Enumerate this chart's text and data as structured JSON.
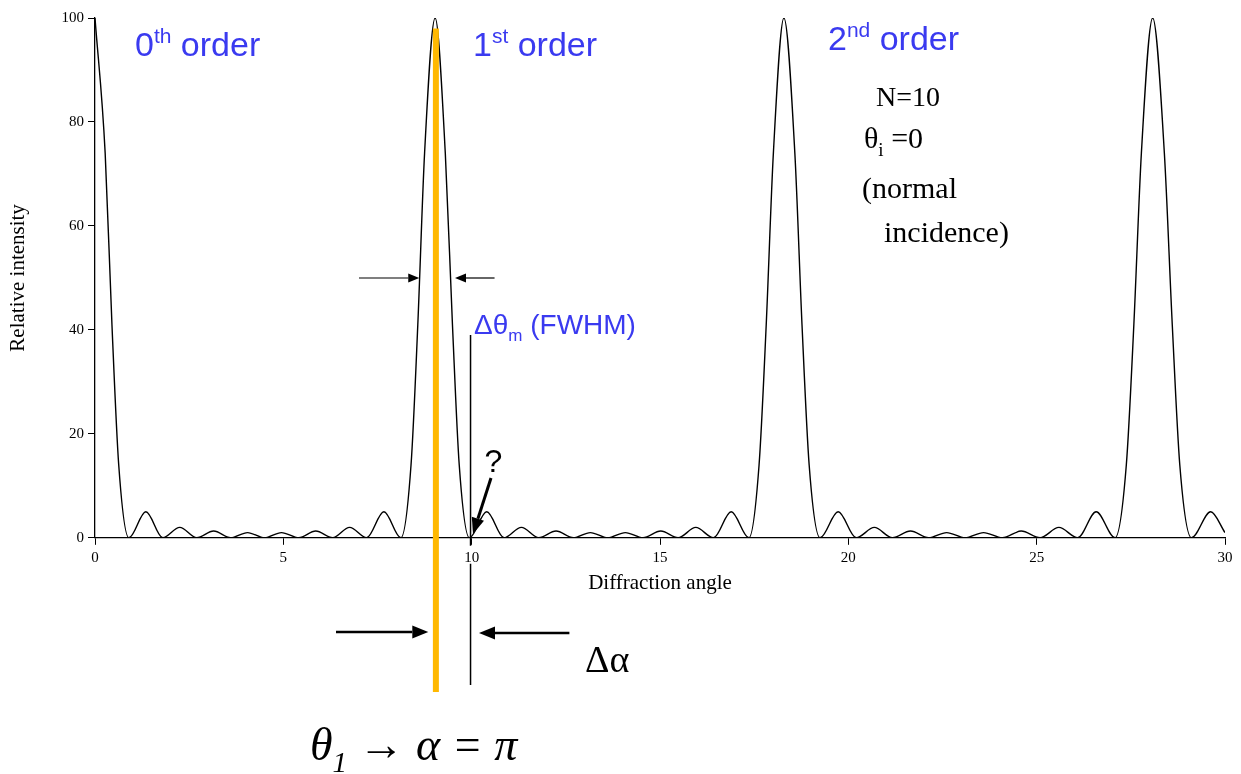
{
  "chart_data": {
    "type": "line",
    "xlabel": "Diffraction angle",
    "ylabel": "Relative intensity",
    "series": [
      {
        "color": "#000000",
        "x": [
          0,
          0.27,
          0.45,
          0.63,
          0.9,
          1.35,
          1.8,
          2.25,
          2.7,
          3.15,
          3.6,
          4.05,
          4.5,
          4.95,
          5.41,
          5.86,
          6.31,
          6.76,
          7.21,
          7.67,
          8.12,
          8.39,
          8.57,
          8.75,
          9.03,
          9.3,
          9.49,
          9.67,
          9.94,
          10.4,
          10.86,
          11.32,
          11.78,
          12.24,
          12.7,
          13.15,
          13.61,
          14.08,
          14.55,
          15.02,
          15.48,
          15.95,
          16.42,
          16.89,
          17.36,
          17.63,
          17.82,
          18.01,
          18.29,
          18.58,
          18.77,
          18.96,
          19.25,
          19.73,
          20.21,
          20.69,
          21.17,
          21.65,
          22.13,
          22.61,
          23.1,
          23.59,
          24.09,
          24.59,
          25.09,
          25.59,
          26.09,
          26.58,
          27.08,
          27.38,
          27.58,
          27.78,
          28.08,
          28.39,
          28.6,
          28.8,
          29.11,
          29.62,
          30
        ],
        "values": [
          100,
          74,
          41,
          14,
          0,
          5,
          0,
          2,
          0,
          1.3,
          0,
          1,
          0,
          1,
          0,
          1.3,
          0,
          2,
          0,
          5,
          0,
          14,
          41,
          74,
          100,
          74,
          41,
          14,
          0,
          5,
          0,
          2,
          0,
          1.3,
          0,
          1,
          0,
          1,
          0,
          1.3,
          0,
          2,
          0,
          5,
          0,
          14,
          41,
          74,
          100,
          74,
          41,
          14,
          0,
          5,
          0,
          2,
          0,
          1.3,
          0,
          1,
          0,
          1,
          0,
          1.3,
          0,
          2,
          0,
          5,
          0,
          14,
          41,
          74,
          100,
          74,
          41,
          14,
          0,
          5,
          1
        ]
      }
    ],
    "xlim": [
      0,
      30
    ],
    "xticks": [
      0,
      5,
      10,
      15,
      20,
      25,
      30
    ],
    "ylim": [
      0,
      100
    ],
    "yticks": [
      0,
      20,
      40,
      60,
      80,
      100
    ],
    "grid": false,
    "legend": false,
    "marker": "none",
    "line_style": "solid",
    "ref_lines": [
      {
        "axis": "x",
        "value": 9.05,
        "color": "#ffb800"
      },
      {
        "axis": "x",
        "value": 9.97,
        "color": "#000000"
      }
    ],
    "annotations": [
      "0$^{th}$ order",
      "1$^{st}$ order",
      "2$^{nd}$ order",
      "N=10",
      "θ$_{i}$ =0",
      "(normal incidence)",
      "Δθ$_{m}$ (FWHM)",
      {
        "text": "?",
        "x": 9.97,
        "y": 0
      },
      "Δα",
      "θ$_{1}$ → α = π"
    ]
  }
}
